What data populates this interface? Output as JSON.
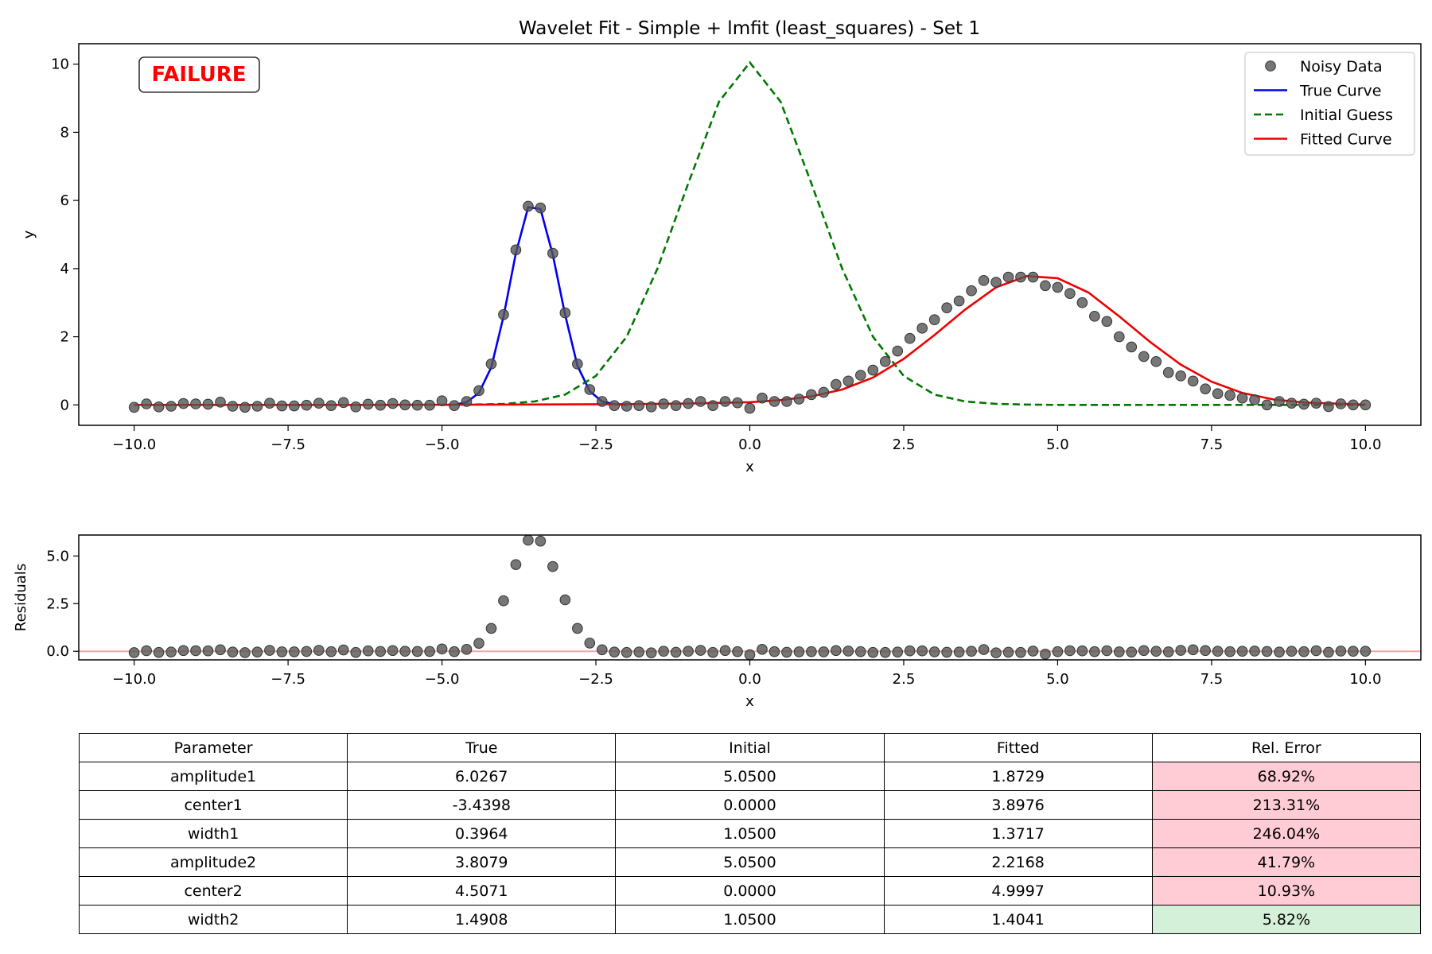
{
  "chart_data": [
    {
      "type": "line",
      "title": "Wavelet Fit - Simple + lmfit (least_squares) - Set 1",
      "xlabel": "x",
      "ylabel": "y",
      "xlim": [
        -10.9,
        10.9
      ],
      "ylim": [
        -0.6,
        10.6
      ],
      "xticks": [
        -10,
        -7.5,
        -5,
        -2.5,
        0,
        2.5,
        5,
        7.5,
        10
      ],
      "xtick_labels": [
        "−10.0",
        "−7.5",
        "−5.0",
        "−2.5",
        "0.0",
        "2.5",
        "5.0",
        "7.5",
        "10.0"
      ],
      "yticks": [
        0,
        2,
        4,
        6,
        8,
        10
      ],
      "ytick_labels": [
        "0",
        "2",
        "4",
        "6",
        "8",
        "10"
      ],
      "grid": false,
      "legend_position": "top-right",
      "annotation": {
        "text": "FAILURE",
        "color": "#ff0000"
      },
      "series": [
        {
          "name": "Noisy Data",
          "kind": "scatter",
          "color": "#555555",
          "x": [
            -10.0,
            -9.8,
            -9.6,
            -9.4,
            -9.2,
            -9.0,
            -8.8,
            -8.6,
            -8.4,
            -8.2,
            -8.0,
            -7.8,
            -7.6,
            -7.4,
            -7.2,
            -7.0,
            -6.8,
            -6.6,
            -6.4,
            -6.2,
            -6.0,
            -5.8,
            -5.6,
            -5.4,
            -5.2,
            -5.0,
            -4.8,
            -4.6,
            -4.4,
            -4.2,
            -4.0,
            -3.8,
            -3.6,
            -3.4,
            -3.2,
            -3.0,
            -2.8,
            -2.6,
            -2.4,
            -2.2,
            -2.0,
            -1.8,
            -1.6,
            -1.4,
            -1.2,
            -1.0,
            -0.8,
            -0.6,
            -0.4,
            -0.2,
            0.0,
            0.2,
            0.4,
            0.6,
            0.8,
            1.0,
            1.2,
            1.4,
            1.6,
            1.8,
            2.0,
            2.2,
            2.4,
            2.6,
            2.8,
            3.0,
            3.2,
            3.4,
            3.6,
            3.8,
            4.0,
            4.2,
            4.4,
            4.6,
            4.8,
            5.0,
            5.2,
            5.4,
            5.6,
            5.8,
            6.0,
            6.2,
            6.4,
            6.6,
            6.8,
            7.0,
            7.2,
            7.4,
            7.6,
            7.8,
            8.0,
            8.2,
            8.4,
            8.6,
            8.8,
            9.0,
            9.2,
            9.4,
            9.6,
            9.8,
            10.0
          ],
          "y": [
            -0.07,
            0.03,
            -0.06,
            -0.04,
            0.04,
            0.03,
            0.02,
            0.08,
            -0.04,
            -0.07,
            -0.04,
            0.05,
            -0.03,
            -0.03,
            -0.01,
            0.05,
            -0.02,
            0.07,
            -0.06,
            0.02,
            -0.01,
            0.04,
            0.0,
            -0.01,
            -0.01,
            0.12,
            -0.02,
            0.1,
            0.42,
            1.2,
            2.65,
            4.55,
            5.83,
            5.78,
            4.45,
            2.7,
            1.2,
            0.45,
            0.1,
            -0.02,
            -0.04,
            -0.02,
            -0.06,
            0.03,
            -0.02,
            0.04,
            0.1,
            -0.02,
            0.1,
            0.06,
            -0.1,
            0.2,
            0.1,
            0.1,
            0.17,
            0.3,
            0.37,
            0.6,
            0.7,
            0.87,
            1.02,
            1.27,
            1.58,
            1.95,
            2.25,
            2.5,
            2.85,
            3.05,
            3.35,
            3.65,
            3.6,
            3.75,
            3.75,
            3.75,
            3.5,
            3.45,
            3.27,
            3.0,
            2.6,
            2.45,
            2.0,
            1.7,
            1.42,
            1.27,
            0.95,
            0.85,
            0.7,
            0.47,
            0.33,
            0.28,
            0.2,
            0.15,
            0.0,
            0.1,
            0.05,
            0.02,
            0.05,
            -0.05,
            0.03,
            0.0,
            0.0
          ]
        },
        {
          "name": "True Curve",
          "kind": "line",
          "color": "#0000ee",
          "style": "solid",
          "x": [
            -4.8,
            -4.6,
            -4.4,
            -4.2,
            -4.0,
            -3.8,
            -3.6,
            -3.4,
            -3.2,
            -3.0,
            -2.8,
            -2.6,
            -2.4,
            -2.2,
            -2.0
          ],
          "y": [
            0.0,
            0.08,
            0.35,
            1.1,
            2.6,
            4.45,
            5.8,
            5.75,
            4.4,
            2.65,
            1.15,
            0.4,
            0.1,
            0.02,
            0.0
          ]
        },
        {
          "name": "Initial Guess",
          "kind": "line",
          "color": "#007700",
          "style": "dashed",
          "x": [
            -5.0,
            -4.5,
            -4.0,
            -3.5,
            -3.0,
            -2.5,
            -2.0,
            -1.5,
            -1.0,
            -0.5,
            0.0,
            0.5,
            1.0,
            1.5,
            2.0,
            2.5,
            3.0,
            3.5,
            4.0,
            4.5,
            5.0,
            5.5,
            6.0,
            7.0,
            8.0,
            9.0,
            10.0
          ],
          "y": [
            0.0,
            0.01,
            0.03,
            0.1,
            0.3,
            0.85,
            2.0,
            4.0,
            6.5,
            8.9,
            10.05,
            8.9,
            6.5,
            4.0,
            2.0,
            0.85,
            0.3,
            0.1,
            0.03,
            0.01,
            0.0,
            0.0,
            0.0,
            0.0,
            0.0,
            0.0,
            0.0
          ]
        },
        {
          "name": "Fitted Curve",
          "kind": "line",
          "color": "#ee0000",
          "style": "solid",
          "x": [
            -10.0,
            -8.0,
            -6.0,
            -4.0,
            -2.0,
            -1.0,
            0.0,
            0.5,
            1.0,
            1.5,
            2.0,
            2.5,
            3.0,
            3.5,
            4.0,
            4.5,
            5.0,
            5.5,
            6.0,
            6.5,
            7.0,
            7.5,
            8.0,
            8.5,
            9.0,
            10.0
          ],
          "y": [
            0.0,
            0.0,
            0.0,
            0.01,
            0.02,
            0.04,
            0.08,
            0.14,
            0.25,
            0.45,
            0.8,
            1.35,
            2.05,
            2.8,
            3.45,
            3.78,
            3.72,
            3.3,
            2.6,
            1.85,
            1.18,
            0.68,
            0.35,
            0.16,
            0.07,
            0.01
          ]
        }
      ]
    },
    {
      "type": "scatter",
      "xlabel": "x",
      "ylabel": "Residuals",
      "xlim": [
        -10.9,
        10.9
      ],
      "ylim": [
        -0.45,
        6.1
      ],
      "xticks": [
        -10,
        -7.5,
        -5,
        -2.5,
        0,
        2.5,
        5,
        7.5,
        10
      ],
      "xtick_labels": [
        "−10.0",
        "−7.5",
        "−5.0",
        "−2.5",
        "0.0",
        "2.5",
        "5.0",
        "7.5",
        "10.0"
      ],
      "yticks": [
        0,
        2.5,
        5
      ],
      "ytick_labels": [
        "0.0",
        "2.5",
        "5.0"
      ],
      "reference_line": {
        "y": 0,
        "color": "#f4a6a6"
      },
      "grid": false,
      "series": [
        {
          "kind": "scatter",
          "color": "#555555",
          "x": [
            -10.0,
            -9.8,
            -9.6,
            -9.4,
            -9.2,
            -9.0,
            -8.8,
            -8.6,
            -8.4,
            -8.2,
            -8.0,
            -7.8,
            -7.6,
            -7.4,
            -7.2,
            -7.0,
            -6.8,
            -6.6,
            -6.4,
            -6.2,
            -6.0,
            -5.8,
            -5.6,
            -5.4,
            -5.2,
            -5.0,
            -4.8,
            -4.6,
            -4.4,
            -4.2,
            -4.0,
            -3.8,
            -3.6,
            -3.4,
            -3.2,
            -3.0,
            -2.8,
            -2.6,
            -2.4,
            -2.2,
            -2.0,
            -1.8,
            -1.6,
            -1.4,
            -1.2,
            -1.0,
            -0.8,
            -0.6,
            -0.4,
            -0.2,
            0.0,
            0.2,
            0.4,
            0.6,
            0.8,
            1.0,
            1.2,
            1.4,
            1.6,
            1.8,
            2.0,
            2.2,
            2.4,
            2.6,
            2.8,
            3.0,
            3.2,
            3.4,
            3.6,
            3.8,
            4.0,
            4.2,
            4.4,
            4.6,
            4.8,
            5.0,
            5.2,
            5.4,
            5.6,
            5.8,
            6.0,
            6.2,
            6.4,
            6.6,
            6.8,
            7.0,
            7.2,
            7.4,
            7.6,
            7.8,
            8.0,
            8.2,
            8.4,
            8.6,
            8.8,
            9.0,
            9.2,
            9.4,
            9.6,
            9.8,
            10.0
          ],
          "y": [
            -0.07,
            0.03,
            -0.06,
            -0.04,
            0.04,
            0.03,
            0.02,
            0.08,
            -0.04,
            -0.07,
            -0.04,
            0.05,
            -0.03,
            -0.03,
            -0.01,
            0.05,
            -0.02,
            0.07,
            -0.06,
            0.02,
            -0.01,
            0.04,
            0.0,
            -0.01,
            -0.01,
            0.12,
            -0.02,
            0.1,
            0.42,
            1.2,
            2.65,
            4.55,
            5.83,
            5.78,
            4.45,
            2.7,
            1.2,
            0.43,
            0.08,
            -0.04,
            -0.06,
            -0.04,
            -0.08,
            0.0,
            -0.05,
            0.0,
            0.05,
            -0.06,
            0.04,
            -0.02,
            -0.18,
            0.1,
            -0.02,
            -0.05,
            -0.03,
            -0.02,
            -0.03,
            0.04,
            0.01,
            -0.02,
            -0.06,
            -0.06,
            -0.04,
            0.02,
            0.02,
            -0.03,
            -0.05,
            -0.04,
            0.0,
            0.09,
            -0.08,
            -0.05,
            -0.06,
            0.01,
            -0.15,
            -0.02,
            0.03,
            0.02,
            -0.02,
            0.03,
            -0.03,
            -0.04,
            0.04,
            0.0,
            -0.03,
            0.05,
            0.08,
            0.04,
            0.0,
            -0.02,
            0.0,
            0.01,
            -0.01,
            -0.04,
            0.0,
            -0.02,
            0.03,
            -0.05,
            0.01,
            0.0,
            0.0
          ]
        }
      ]
    },
    {
      "type": "table",
      "columns": [
        "Parameter",
        "True",
        "Initial",
        "Fitted",
        "Rel. Error"
      ],
      "rows": [
        [
          "amplitude1",
          "6.0267",
          "5.0500",
          "1.8729",
          "68.92%"
        ],
        [
          "center1",
          "-3.4398",
          "0.0000",
          "3.8976",
          "213.31%"
        ],
        [
          "width1",
          "0.3964",
          "1.0500",
          "1.3717",
          "246.04%"
        ],
        [
          "amplitude2",
          "3.8079",
          "5.0500",
          "2.2168",
          "41.79%"
        ],
        [
          "center2",
          "4.5071",
          "0.0000",
          "4.9997",
          "10.93%"
        ],
        [
          "width2",
          "1.4908",
          "1.0500",
          "1.4041",
          "5.82%"
        ]
      ],
      "error_cell_colors": [
        "#ffccd5",
        "#ffccd5",
        "#ffccd5",
        "#ffccd5",
        "#ffccd5",
        "#d5f0d9"
      ]
    }
  ]
}
